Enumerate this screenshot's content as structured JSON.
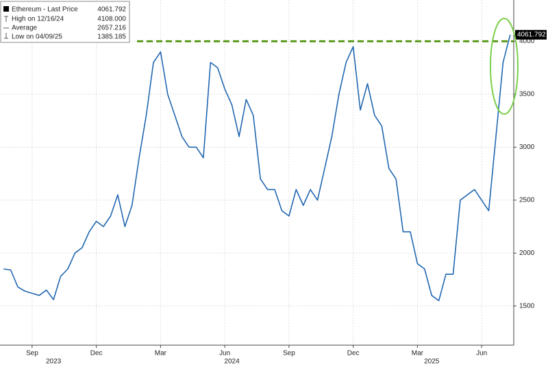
{
  "chart_data": {
    "type": "line",
    "categories": [
      null,
      null,
      null,
      null,
      "Sep",
      null,
      null,
      null,
      null,
      null,
      null,
      null,
      null,
      "Dec",
      null,
      null,
      null,
      null,
      null,
      null,
      null,
      null,
      "Mar",
      null,
      null,
      null,
      null,
      null,
      null,
      null,
      null,
      "Jun",
      null,
      null,
      null,
      null,
      null,
      null,
      null,
      null,
      "Sep",
      null,
      null,
      null,
      null,
      null,
      null,
      null,
      null,
      "Dec",
      null,
      null,
      null,
      null,
      null,
      null,
      null,
      null,
      "Mar",
      null,
      null,
      null,
      null,
      null,
      null,
      null,
      null,
      "Jun",
      null,
      null,
      null,
      null
    ],
    "category_years": [
      null,
      null,
      null,
      null,
      null,
      null,
      null,
      "2023",
      null,
      null,
      null,
      null,
      null,
      null,
      null,
      null,
      null,
      null,
      null,
      null,
      null,
      null,
      null,
      null,
      null,
      null,
      null,
      null,
      null,
      null,
      null,
      null,
      "2024",
      null,
      null,
      null,
      null,
      null,
      null,
      null,
      null,
      null,
      null,
      null,
      null,
      null,
      null,
      null,
      null,
      null,
      null,
      null,
      null,
      null,
      null,
      null,
      null,
      null,
      null,
      null,
      "2025",
      null,
      null,
      null,
      null,
      null,
      null,
      null,
      null,
      null,
      null,
      null
    ],
    "series": [
      {
        "name": "Ethereum - Last Price",
        "color": "#1f66b0",
        "values": [
          1850,
          1840,
          1680,
          1640,
          1620,
          1600,
          1650,
          1560,
          1780,
          1850,
          2000,
          2050,
          2200,
          2300,
          2250,
          2350,
          2550,
          2250,
          2450,
          2900,
          3300,
          3800,
          3900,
          3500,
          3300,
          3100,
          3000,
          3000,
          2900,
          3800,
          3750,
          3550,
          3400,
          3100,
          3450,
          3300,
          2700,
          2600,
          2600,
          2400,
          2350,
          2600,
          2450,
          2600,
          2500,
          2800,
          3100,
          3500,
          3800,
          3950,
          3350,
          3600,
          3300,
          3200,
          2800,
          2700,
          2200,
          2200,
          1900,
          1850,
          1600,
          1550,
          1800,
          1800,
          2500,
          2550,
          2600,
          2500,
          2400,
          3100,
          3800,
          4061.792
        ]
      }
    ],
    "legend": [
      {
        "label": "Ethereum - Last Price",
        "value": "4061.792"
      },
      {
        "label": "High on 12/16/24",
        "value": "4108.000"
      },
      {
        "label": "Average",
        "value": "2657.216"
      },
      {
        "label": "Low on 04/09/25",
        "value": "1385.185"
      }
    ],
    "reference_line": {
      "value": 4000,
      "color": "#5a9a1a"
    },
    "ylim": [
      1130,
      4390
    ],
    "yticks": [
      1500,
      2000,
      2500,
      3000,
      3500,
      4000
    ],
    "grid": true
  }
}
